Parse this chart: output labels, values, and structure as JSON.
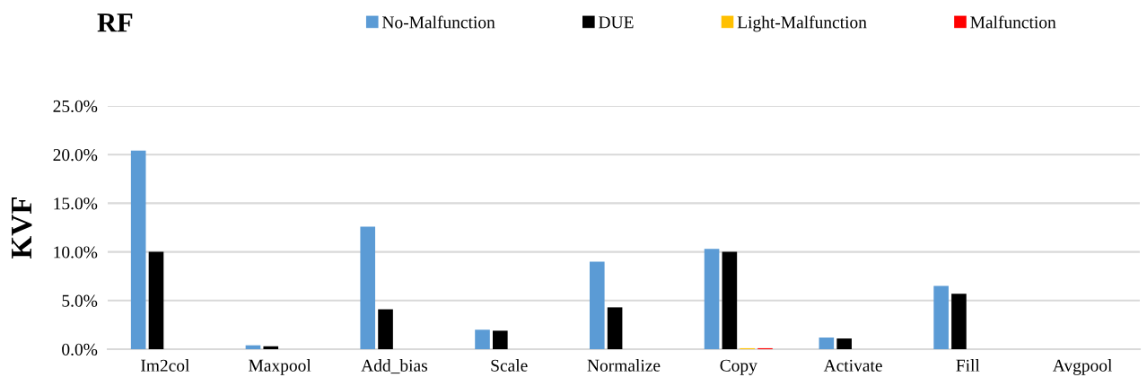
{
  "chart_data": {
    "type": "bar",
    "title": "RF",
    "ylabel": "KVF",
    "categories": [
      "Im2col",
      "Maxpool",
      "Add_bias",
      "Scale",
      "Normalize",
      "Copy",
      "Activate",
      "Fill",
      "Avgpool"
    ],
    "series": [
      {
        "name": "No-Malfunction",
        "color": "#5b9bd5",
        "values": [
          20.4,
          0.4,
          12.6,
          2.0,
          9.0,
          10.3,
          1.2,
          6.5,
          0
        ]
      },
      {
        "name": "DUE",
        "color": "#000000",
        "values": [
          10.0,
          0.3,
          4.1,
          1.9,
          4.3,
          10.0,
          1.1,
          5.7,
          0
        ]
      },
      {
        "name": "Light-Malfunction",
        "color": "#ffc000",
        "values": [
          0,
          0,
          0,
          0,
          0,
          0.1,
          0,
          0,
          0
        ]
      },
      {
        "name": "Malfunction",
        "color": "#ff0000",
        "values": [
          0,
          0,
          0,
          0,
          0,
          0.1,
          0,
          0,
          0
        ]
      }
    ],
    "ylim": [
      0,
      25
    ],
    "yticks": [
      {
        "value": 0,
        "label": "0.0%"
      },
      {
        "value": 5,
        "label": "5.0%"
      },
      {
        "value": 10,
        "label": "10.0%"
      },
      {
        "value": 15,
        "label": "15.0%"
      },
      {
        "value": 20,
        "label": "20.0%"
      },
      {
        "value": 25,
        "label": "25.0%"
      }
    ],
    "grid": "y",
    "legend": "top"
  }
}
